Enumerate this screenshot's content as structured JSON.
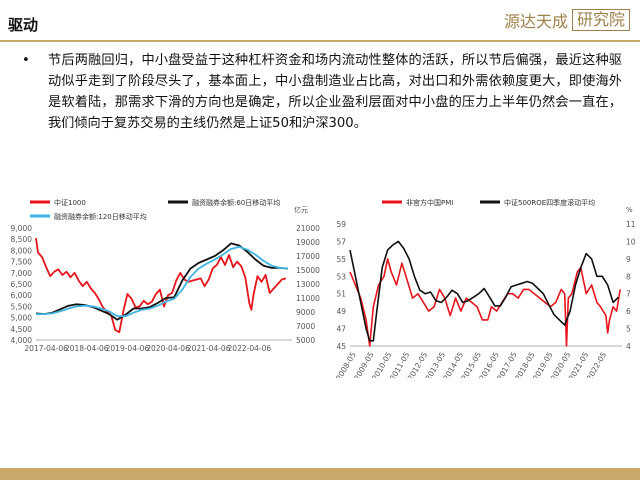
{
  "slide": {
    "title": "驱动",
    "brand_left": "源达天成",
    "brand_right": "研究院",
    "bullet": "节后两融回归，中小盘受益于这种杠杆资金和场内流动性整体的活跃，所以节后偏强，最近这种驱动似乎走到了阶段尽头了，基本面上，中小盘制造业占比高，对出口和外需依赖度更大，即使海外是软着陆，那需求下滑的方向也是确定，所以企业盈利层面对中小盘的压力上半年仍然会一直在，我们倾向于复苏交易的主线仍然是上证50和沪深300。"
  },
  "colors": {
    "red": "#e8141c",
    "black": "#111111",
    "blue": "#3eb5e2",
    "accent": "#c9a86a"
  },
  "chart_data": [
    {
      "type": "line",
      "right_unit": "亿元",
      "left_ticks": [
        "9,000",
        "8,500",
        "8,000",
        "7,500",
        "7,000",
        "6,500",
        "6,000",
        "5,500",
        "5,000",
        "4,500",
        "4,000"
      ],
      "right_ticks": [
        "21000",
        "19000",
        "17000",
        "15000",
        "13000",
        "11000",
        "9000",
        "7000",
        "5000"
      ],
      "x_ticks": [
        "2017-04-06",
        "2018-04-06",
        "2019-04-06",
        "2020-04-06",
        "2021-04-06",
        "2022-04-06"
      ],
      "ylim_left": [
        4000,
        9000
      ],
      "ylim_right": [
        5000,
        21000
      ],
      "x_range": [
        2017.0,
        2023.3
      ],
      "series": [
        {
          "name": "中证1000",
          "axis": "left",
          "color": "#e8141c",
          "x": [
            2017.0,
            2017.05,
            2017.15,
            2017.25,
            2017.35,
            2017.45,
            2017.55,
            2017.65,
            2017.75,
            2017.85,
            2017.95,
            2018.05,
            2018.15,
            2018.25,
            2018.35,
            2018.45,
            2018.55,
            2018.65,
            2018.75,
            2018.85,
            2018.95,
            2019.05,
            2019.15,
            2019.25,
            2019.35,
            2019.45,
            2019.55,
            2019.65,
            2019.75,
            2019.85,
            2019.95,
            2020.05,
            2020.15,
            2020.25,
            2020.35,
            2020.45,
            2020.55,
            2020.65,
            2020.75,
            2020.85,
            2020.95,
            2021.05,
            2021.15,
            2021.25,
            2021.35,
            2021.45,
            2021.55,
            2021.65,
            2021.75,
            2021.85,
            2021.95,
            2022.05,
            2022.15,
            2022.25,
            2022.3,
            2022.35,
            2022.45,
            2022.55,
            2022.65,
            2022.75,
            2022.85,
            2022.95,
            2023.05,
            2023.15
          ],
          "values": [
            8550,
            7900,
            7700,
            7250,
            6850,
            7050,
            7150,
            6900,
            7050,
            6800,
            7000,
            6650,
            6400,
            6600,
            6300,
            6100,
            5800,
            5450,
            5250,
            5100,
            4450,
            4350,
            5300,
            6050,
            5850,
            5450,
            5500,
            5750,
            5600,
            5700,
            6050,
            6250,
            5500,
            6000,
            6100,
            6650,
            7000,
            6700,
            6600,
            6650,
            6700,
            6750,
            6400,
            6700,
            7200,
            7350,
            7700,
            7350,
            7800,
            7250,
            7500,
            7300,
            6800,
            5650,
            5350,
            6000,
            6850,
            6600,
            6900,
            6100,
            6300,
            6500,
            6700,
            6750
          ]
        },
        {
          "name": "融资融券余额:60日移动平均",
          "axis": "right",
          "color": "#111111",
          "x": [
            2017.0,
            2017.2,
            2017.4,
            2017.6,
            2017.8,
            2018.0,
            2018.2,
            2018.4,
            2018.6,
            2018.8,
            2019.0,
            2019.2,
            2019.4,
            2019.6,
            2019.8,
            2020.0,
            2020.2,
            2020.4,
            2020.6,
            2020.8,
            2021.0,
            2021.2,
            2021.4,
            2021.6,
            2021.8,
            2022.0,
            2022.2,
            2022.4,
            2022.6,
            2022.8,
            2023.0,
            2023.2
          ],
          "values": [
            8800,
            8700,
            8900,
            9400,
            9900,
            10100,
            10000,
            9700,
            9200,
            8700,
            7900,
            8600,
            9500,
            9500,
            9700,
            10300,
            11000,
            11100,
            13500,
            15200,
            16000,
            16500,
            17000,
            17800,
            18800,
            18500,
            17600,
            16500,
            15600,
            15300,
            15300,
            15200
          ]
        },
        {
          "name": "融资融券余额:120日移动平均",
          "axis": "right",
          "color": "#3eb5e2",
          "x": [
            2017.0,
            2017.2,
            2017.4,
            2017.6,
            2017.8,
            2018.0,
            2018.2,
            2018.4,
            2018.6,
            2018.8,
            2019.0,
            2019.2,
            2019.4,
            2019.6,
            2019.8,
            2020.0,
            2020.2,
            2020.4,
            2020.6,
            2020.8,
            2021.0,
            2021.2,
            2021.4,
            2021.6,
            2021.8,
            2022.0,
            2022.2,
            2022.4,
            2022.6,
            2022.8,
            2023.0,
            2023.2
          ],
          "values": [
            8700,
            8700,
            8800,
            9100,
            9500,
            9800,
            9900,
            9800,
            9500,
            9100,
            8400,
            8400,
            8900,
            9300,
            9500,
            9900,
            10500,
            10900,
            12200,
            14000,
            15200,
            15900,
            16500,
            17200,
            18000,
            18300,
            17900,
            17200,
            16300,
            15600,
            15300,
            15200
          ]
        }
      ]
    },
    {
      "type": "line",
      "right_unit": "%",
      "left_ticks": [
        "59",
        "57",
        "55",
        "53",
        "51",
        "49",
        "47",
        "45"
      ],
      "right_ticks": [
        "11",
        "10",
        "9",
        "8",
        "7",
        "6",
        "5",
        "4"
      ],
      "x_ticks": [
        "2008-05",
        "2009-05",
        "2010-05",
        "2011-05",
        "2012-05",
        "2013-05",
        "2014-05",
        "2015-05",
        "2016-05",
        "2017-05",
        "2018-05",
        "2019-05",
        "2020-05",
        "2021-05",
        "2022-05"
      ],
      "ylim_left": [
        45,
        59
      ],
      "ylim_right": [
        4,
        11
      ],
      "x_range": [
        2008.0,
        2023.2
      ],
      "series": [
        {
          "name": "非官方中国PMI",
          "axis": "left",
          "color": "#e8141c",
          "x": [
            2008.0,
            2008.3,
            2008.6,
            2008.9,
            2009.1,
            2009.3,
            2009.6,
            2009.9,
            2010.1,
            2010.3,
            2010.6,
            2010.9,
            2011.2,
            2011.5,
            2011.8,
            2012.1,
            2012.4,
            2012.7,
            2013.0,
            2013.3,
            2013.6,
            2013.9,
            2014.2,
            2014.5,
            2014.8,
            2015.1,
            2015.4,
            2015.7,
            2015.9,
            2016.2,
            2016.5,
            2016.8,
            2017.1,
            2017.4,
            2017.7,
            2018.0,
            2018.3,
            2018.6,
            2018.9,
            2019.2,
            2019.5,
            2019.8,
            2020.0,
            2020.1,
            2020.2,
            2020.4,
            2020.7,
            2020.9,
            2021.2,
            2021.5,
            2021.8,
            2022.0,
            2022.3,
            2022.4,
            2022.5,
            2022.7,
            2022.9,
            2023.1
          ],
          "values": [
            53.5,
            52.0,
            50.5,
            48.0,
            45.0,
            49.5,
            52.0,
            53.0,
            55.0,
            53.5,
            52.0,
            54.5,
            52.5,
            50.5,
            51.0,
            50.0,
            49.0,
            49.5,
            51.5,
            50.5,
            48.5,
            50.5,
            49.0,
            50.5,
            50.0,
            49.5,
            48.0,
            48.0,
            49.5,
            49.0,
            50.0,
            51.0,
            51.0,
            50.5,
            51.5,
            51.5,
            51.0,
            50.5,
            50.0,
            49.5,
            50.0,
            51.5,
            51.0,
            45.0,
            50.5,
            51.0,
            53.5,
            54.0,
            51.0,
            52.0,
            50.0,
            49.5,
            48.5,
            46.5,
            48.0,
            49.5,
            49.0,
            51.5
          ]
        },
        {
          "name": "中证500ROE四季度滚动平均",
          "axis": "right",
          "color": "#111111",
          "x": [
            2008.0,
            2008.3,
            2008.6,
            2008.9,
            2009.1,
            2009.3,
            2009.5,
            2009.8,
            2010.1,
            2010.4,
            2010.7,
            2011.0,
            2011.3,
            2011.6,
            2011.9,
            2012.2,
            2012.5,
            2012.8,
            2013.1,
            2013.4,
            2013.7,
            2014.0,
            2014.3,
            2014.6,
            2014.9,
            2015.2,
            2015.5,
            2015.8,
            2016.1,
            2016.4,
            2016.7,
            2017.0,
            2017.3,
            2017.6,
            2017.9,
            2018.2,
            2018.5,
            2018.8,
            2019.1,
            2019.4,
            2019.7,
            2020.0,
            2020.3,
            2020.6,
            2020.9,
            2021.2,
            2021.5,
            2021.8,
            2022.1,
            2022.4,
            2022.7,
            2023.0
          ],
          "values": [
            9.5,
            8.0,
            6.5,
            5.0,
            4.3,
            4.3,
            6.0,
            8.5,
            9.5,
            9.8,
            10.0,
            9.6,
            9.0,
            8.0,
            7.2,
            7.0,
            7.1,
            6.6,
            6.5,
            6.8,
            7.2,
            7.0,
            6.5,
            6.6,
            6.8,
            7.0,
            7.3,
            6.8,
            6.3,
            6.3,
            6.8,
            7.4,
            7.5,
            7.6,
            7.7,
            7.6,
            7.3,
            7.0,
            6.4,
            5.8,
            5.5,
            5.2,
            6.0,
            7.5,
            8.5,
            9.3,
            9.0,
            8.0,
            8.0,
            7.5,
            6.5,
            6.8
          ]
        }
      ]
    }
  ]
}
